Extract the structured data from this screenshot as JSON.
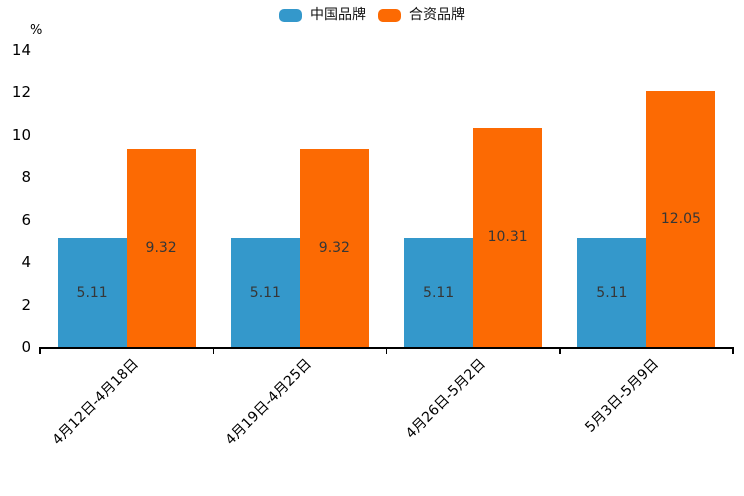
{
  "chart_data": {
    "type": "bar",
    "title": "",
    "unit_label": "%",
    "categories": [
      "4月12日-4月18日",
      "4月19日-4月25日",
      "4月26日-5月2日",
      "5月3日-5月9日"
    ],
    "series": [
      {
        "name": "中国品牌",
        "color": "#3498cb",
        "values": [
          5.11,
          5.11,
          5.11,
          5.11
        ]
      },
      {
        "name": "合资品牌",
        "color": "#fc6a03",
        "values": [
          9.32,
          9.32,
          10.31,
          12.05
        ]
      }
    ],
    "ylim": [
      0,
      14
    ],
    "yticks": [
      0,
      2,
      4,
      6,
      8,
      10,
      12,
      14
    ],
    "grid": false,
    "legend_position": "top-center",
    "value_label_position": "inside-center",
    "value_label_color": "#363636",
    "axis_color": "#000000",
    "background_color": "#ffffff"
  }
}
